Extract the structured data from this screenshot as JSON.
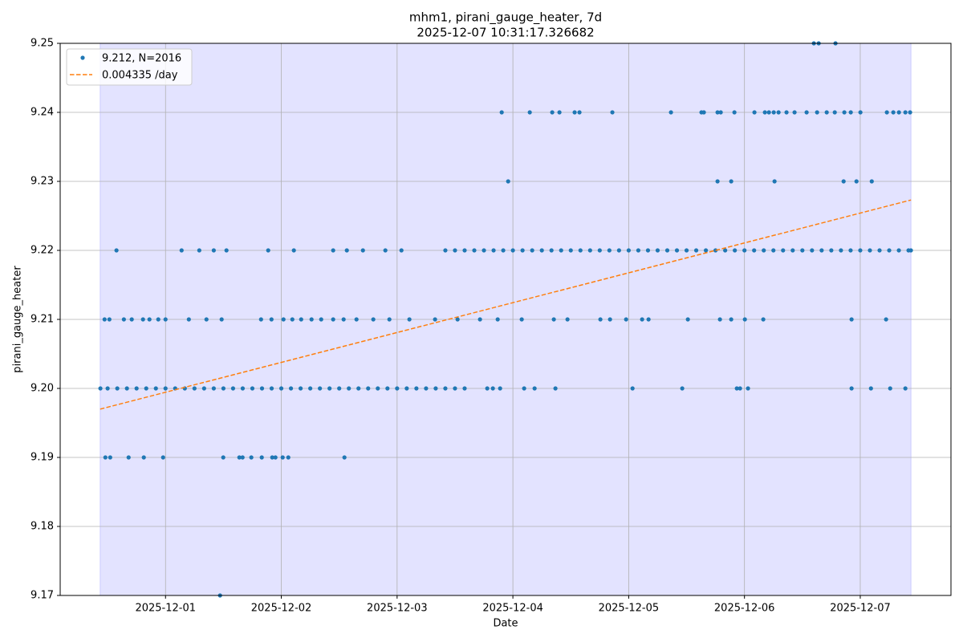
{
  "chart_data": {
    "type": "scatter",
    "title": "mhm1, pirani_gauge_heater, 7d",
    "subtitle": "2025-12-07 10:31:17.326682",
    "x_label": "Date",
    "y_label": "pirani_gauge_heater",
    "xlim": [
      "2025-11-30T02:10",
      "2025-12-07T18:48"
    ],
    "xticks": [
      "2025-12-01",
      "2025-12-02",
      "2025-12-03",
      "2025-12-04",
      "2025-12-05",
      "2025-12-06",
      "2025-12-07"
    ],
    "ylim": [
      9.17,
      9.25
    ],
    "yticks": [
      9.17,
      9.18,
      9.19,
      {
        "value": 9.2,
        "label": "9.20"
      },
      9.21,
      9.22,
      9.23,
      9.24,
      9.25
    ],
    "grid": true,
    "legend": "upper left",
    "span": {
      "x": [
        "2025-11-30T10:27",
        "2025-12-07T10:31"
      ],
      "color": "#0000ff"
    },
    "series": [
      {
        "name": "9.212, N=2016",
        "color": "#1f77b4",
        "x": [
          "2025-11-30T10:30",
          "2025-11-30T12:00",
          "2025-11-30T14:00",
          "2025-11-30T16:00",
          "2025-11-30T18:00",
          "2025-11-30T20:00",
          "2025-11-30T22:00",
          "2025-12-01T00:00",
          "2025-12-01T02:00",
          "2025-12-01T04:00",
          "2025-12-01T06:00",
          "2025-12-01T08:00",
          "2025-12-01T10:00",
          "2025-12-01T12:00",
          "2025-12-01T14:00",
          "2025-12-01T16:00",
          "2025-12-01T18:00",
          "2025-12-01T20:00",
          "2025-12-01T22:00",
          "2025-12-02T00:00",
          "2025-12-02T02:00",
          "2025-12-02T04:00",
          "2025-12-02T06:00",
          "2025-12-02T08:00",
          "2025-12-02T10:00",
          "2025-12-02T12:00",
          "2025-12-02T14:00",
          "2025-12-02T16:00",
          "2025-12-02T18:00",
          "2025-12-02T20:00",
          "2025-12-02T22:00",
          "2025-12-03T00:00",
          "2025-12-03T02:00",
          "2025-12-03T04:00",
          "2025-12-03T06:00",
          "2025-12-03T08:00",
          "2025-12-03T10:00",
          "2025-12-03T12:00",
          "2025-12-03T14:00",
          "2025-12-03T18:41",
          "2025-12-03T19:51",
          "2025-12-03T21:21",
          "2025-12-04T02:20",
          "2025-12-04T04:30",
          "2025-12-04T08:49",
          "2025-12-05T00:48",
          "2025-12-05T11:06",
          "2025-12-05T22:25",
          "2025-12-05T23:05",
          "2025-12-06T00:44",
          "2025-12-06T22:12",
          "2025-12-07T02:13",
          "2025-12-07T06:12",
          "2025-12-07T09:21",
          "2025-12-03T10:00",
          "2025-12-03T12:00",
          "2025-12-03T14:00",
          "2025-12-03T16:00",
          "2025-12-03T18:00",
          "2025-12-03T20:00",
          "2025-12-03T22:00",
          "2025-12-04T00:00",
          "2025-12-04T02:00",
          "2025-12-04T04:00",
          "2025-12-04T06:00",
          "2025-12-04T08:00",
          "2025-12-04T10:00",
          "2025-12-04T12:00",
          "2025-12-04T14:00",
          "2025-12-04T16:00",
          "2025-12-04T18:00",
          "2025-12-04T20:00",
          "2025-12-04T22:00",
          "2025-12-05T00:00",
          "2025-12-05T02:00",
          "2025-12-05T04:00",
          "2025-12-05T06:00",
          "2025-12-05T08:00",
          "2025-12-05T10:00",
          "2025-12-05T12:00",
          "2025-12-05T14:00",
          "2025-12-05T16:00",
          "2025-12-05T18:00",
          "2025-12-05T20:00",
          "2025-12-05T22:00",
          "2025-12-06T00:00",
          "2025-12-06T02:00",
          "2025-12-06T04:00",
          "2025-12-06T06:00",
          "2025-12-06T08:00",
          "2025-12-06T10:00",
          "2025-12-06T12:00",
          "2025-12-06T14:00",
          "2025-12-06T16:00",
          "2025-12-06T18:00",
          "2025-12-06T20:00",
          "2025-12-06T22:00",
          "2025-12-07T00:00",
          "2025-12-07T02:00",
          "2025-12-07T04:00",
          "2025-12-07T06:00",
          "2025-12-07T08:00",
          "2025-12-07T10:00",
          "2025-12-07T10:30",
          "2025-11-30T13:50",
          "2025-12-01T03:20",
          "2025-12-01T07:00",
          "2025-12-01T10:00",
          "2025-12-01T12:38",
          "2025-12-01T21:17",
          "2025-12-02T02:36",
          "2025-12-02T10:45",
          "2025-12-02T13:35",
          "2025-12-02T16:55",
          "2025-12-02T21:34",
          "2025-12-03T00:54",
          "2025-11-30T11:22",
          "2025-11-30T12:22",
          "2025-11-30T15:22",
          "2025-11-30T17:00",
          "2025-11-30T19:20",
          "2025-11-30T20:40",
          "2025-11-30T22:30",
          "2025-12-01T00:00",
          "2025-12-01T04:50",
          "2025-12-01T08:29",
          "2025-12-01T11:38",
          "2025-12-01T19:48",
          "2025-12-01T21:58",
          "2025-12-02T00:27",
          "2025-12-02T02:17",
          "2025-12-02T04:07",
          "2025-12-02T06:16",
          "2025-12-02T08:16",
          "2025-12-02T10:45",
          "2025-12-02T12:55",
          "2025-12-02T15:35",
          "2025-12-02T19:04",
          "2025-12-02T22:24",
          "2025-12-03T02:33",
          "2025-12-03T07:52",
          "2025-12-03T12:32",
          "2025-12-03T17:11",
          "2025-12-03T20:51",
          "2025-12-04T01:50",
          "2025-12-04T08:29",
          "2025-12-04T11:19",
          "2025-12-04T18:08",
          "2025-12-04T20:08",
          "2025-12-04T23:28",
          "2025-12-05T02:47",
          "2025-12-05T04:07",
          "2025-12-05T12:16",
          "2025-12-05T18:55",
          "2025-12-05T21:15",
          "2025-12-06T00:05",
          "2025-12-06T03:54",
          "2025-12-06T22:12",
          "2025-12-07T05:21",
          "2025-11-30T11:32",
          "2025-11-30T12:32",
          "2025-11-30T16:21",
          "2025-11-30T19:30",
          "2025-11-30T23:30",
          "2025-12-01T11:58",
          "2025-12-01T15:18",
          "2025-12-01T15:58",
          "2025-12-01T17:47",
          "2025-12-01T19:57",
          "2025-12-01T22:07",
          "2025-12-01T22:47",
          "2025-12-02T00:17",
          "2025-12-02T01:27",
          "2025-12-02T13:05",
          "2025-12-01T11:18",
          "2025-12-03T23:01",
          "2025-12-05T18:25",
          "2025-12-05T21:15",
          "2025-12-06T06:14",
          "2025-12-06T20:33",
          "2025-12-06T23:13",
          "2025-12-07T02:23",
          "2025-12-03T21:41",
          "2025-12-04T03:30",
          "2025-12-04T08:09",
          "2025-12-04T09:39",
          "2025-12-04T12:48",
          "2025-12-04T13:48",
          "2025-12-04T20:37",
          "2025-12-05T08:46",
          "2025-12-05T15:05",
          "2025-12-05T15:35",
          "2025-12-05T18:25",
          "2025-12-05T19:05",
          "2025-12-05T21:55",
          "2025-12-06T02:04",
          "2025-12-06T04:14",
          "2025-12-06T05:04",
          "2025-12-06T06:04",
          "2025-12-06T07:04",
          "2025-12-06T08:43",
          "2025-12-06T10:23",
          "2025-12-06T12:53",
          "2025-12-06T15:03",
          "2025-12-06T17:03",
          "2025-12-06T18:43",
          "2025-12-06T20:42",
          "2025-12-06T22:02",
          "2025-12-07T00:02",
          "2025-12-07T05:31",
          "2025-12-07T06:51",
          "2025-12-07T08:01",
          "2025-12-07T09:21",
          "2025-12-07T10:20",
          "2025-12-06T14:23",
          "2025-12-06T15:23",
          "2025-12-06T18:52"
        ],
        "values": [
          9.2,
          9.2,
          9.2,
          9.2,
          9.2,
          9.2,
          9.2,
          9.2,
          9.2,
          9.2,
          9.2,
          9.2,
          9.2,
          9.2,
          9.2,
          9.2,
          9.2,
          9.2,
          9.2,
          9.2,
          9.2,
          9.2,
          9.2,
          9.2,
          9.2,
          9.2,
          9.2,
          9.2,
          9.2,
          9.2,
          9.2,
          9.2,
          9.2,
          9.2,
          9.2,
          9.2,
          9.2,
          9.2,
          9.2,
          9.2,
          9.2,
          9.2,
          9.2,
          9.2,
          9.2,
          9.2,
          9.2,
          9.2,
          9.2,
          9.2,
          9.2,
          9.2,
          9.2,
          9.2,
          9.22,
          9.22,
          9.22,
          9.22,
          9.22,
          9.22,
          9.22,
          9.22,
          9.22,
          9.22,
          9.22,
          9.22,
          9.22,
          9.22,
          9.22,
          9.22,
          9.22,
          9.22,
          9.22,
          9.22,
          9.22,
          9.22,
          9.22,
          9.22,
          9.22,
          9.22,
          9.22,
          9.22,
          9.22,
          9.22,
          9.22,
          9.22,
          9.22,
          9.22,
          9.22,
          9.22,
          9.22,
          9.22,
          9.22,
          9.22,
          9.22,
          9.22,
          9.22,
          9.22,
          9.22,
          9.22,
          9.22,
          9.22,
          9.22,
          9.22,
          9.22,
          9.22,
          9.22,
          9.22,
          9.22,
          9.22,
          9.22,
          9.22,
          9.22,
          9.22,
          9.22,
          9.22,
          9.21,
          9.21,
          9.21,
          9.21,
          9.21,
          9.21,
          9.21,
          9.21,
          9.21,
          9.21,
          9.21,
          9.21,
          9.21,
          9.21,
          9.21,
          9.21,
          9.21,
          9.21,
          9.21,
          9.21,
          9.21,
          9.21,
          9.21,
          9.21,
          9.21,
          9.21,
          9.21,
          9.21,
          9.21,
          9.21,
          9.21,
          9.21,
          9.21,
          9.21,
          9.21,
          9.21,
          9.21,
          9.21,
          9.21,
          9.21,
          9.21,
          9.21,
          9.21,
          9.19,
          9.19,
          9.19,
          9.19,
          9.19,
          9.19,
          9.19,
          9.19,
          9.19,
          9.19,
          9.19,
          9.19,
          9.19,
          9.19,
          9.19,
          9.17,
          9.23,
          9.23,
          9.23,
          9.23,
          9.23,
          9.23,
          9.23,
          9.24,
          9.24,
          9.24,
          9.24,
          9.24,
          9.24,
          9.24,
          9.24,
          9.24,
          9.24,
          9.24,
          9.24,
          9.24,
          9.24,
          9.24,
          9.24,
          9.24,
          9.24,
          9.24,
          9.24,
          9.24,
          9.24,
          9.24,
          9.24,
          9.24,
          9.24,
          9.24,
          9.24,
          9.24,
          9.24,
          9.24,
          9.24,
          9.25,
          9.25,
          9.25
        ]
      }
    ],
    "fit": {
      "type": "line",
      "name": "0.004335 /day",
      "color": "#ff7f0e",
      "dashed": true,
      "x": [
        "2025-11-30T10:27",
        "2025-12-07T10:31"
      ],
      "values": [
        9.197,
        9.2273
      ]
    }
  }
}
